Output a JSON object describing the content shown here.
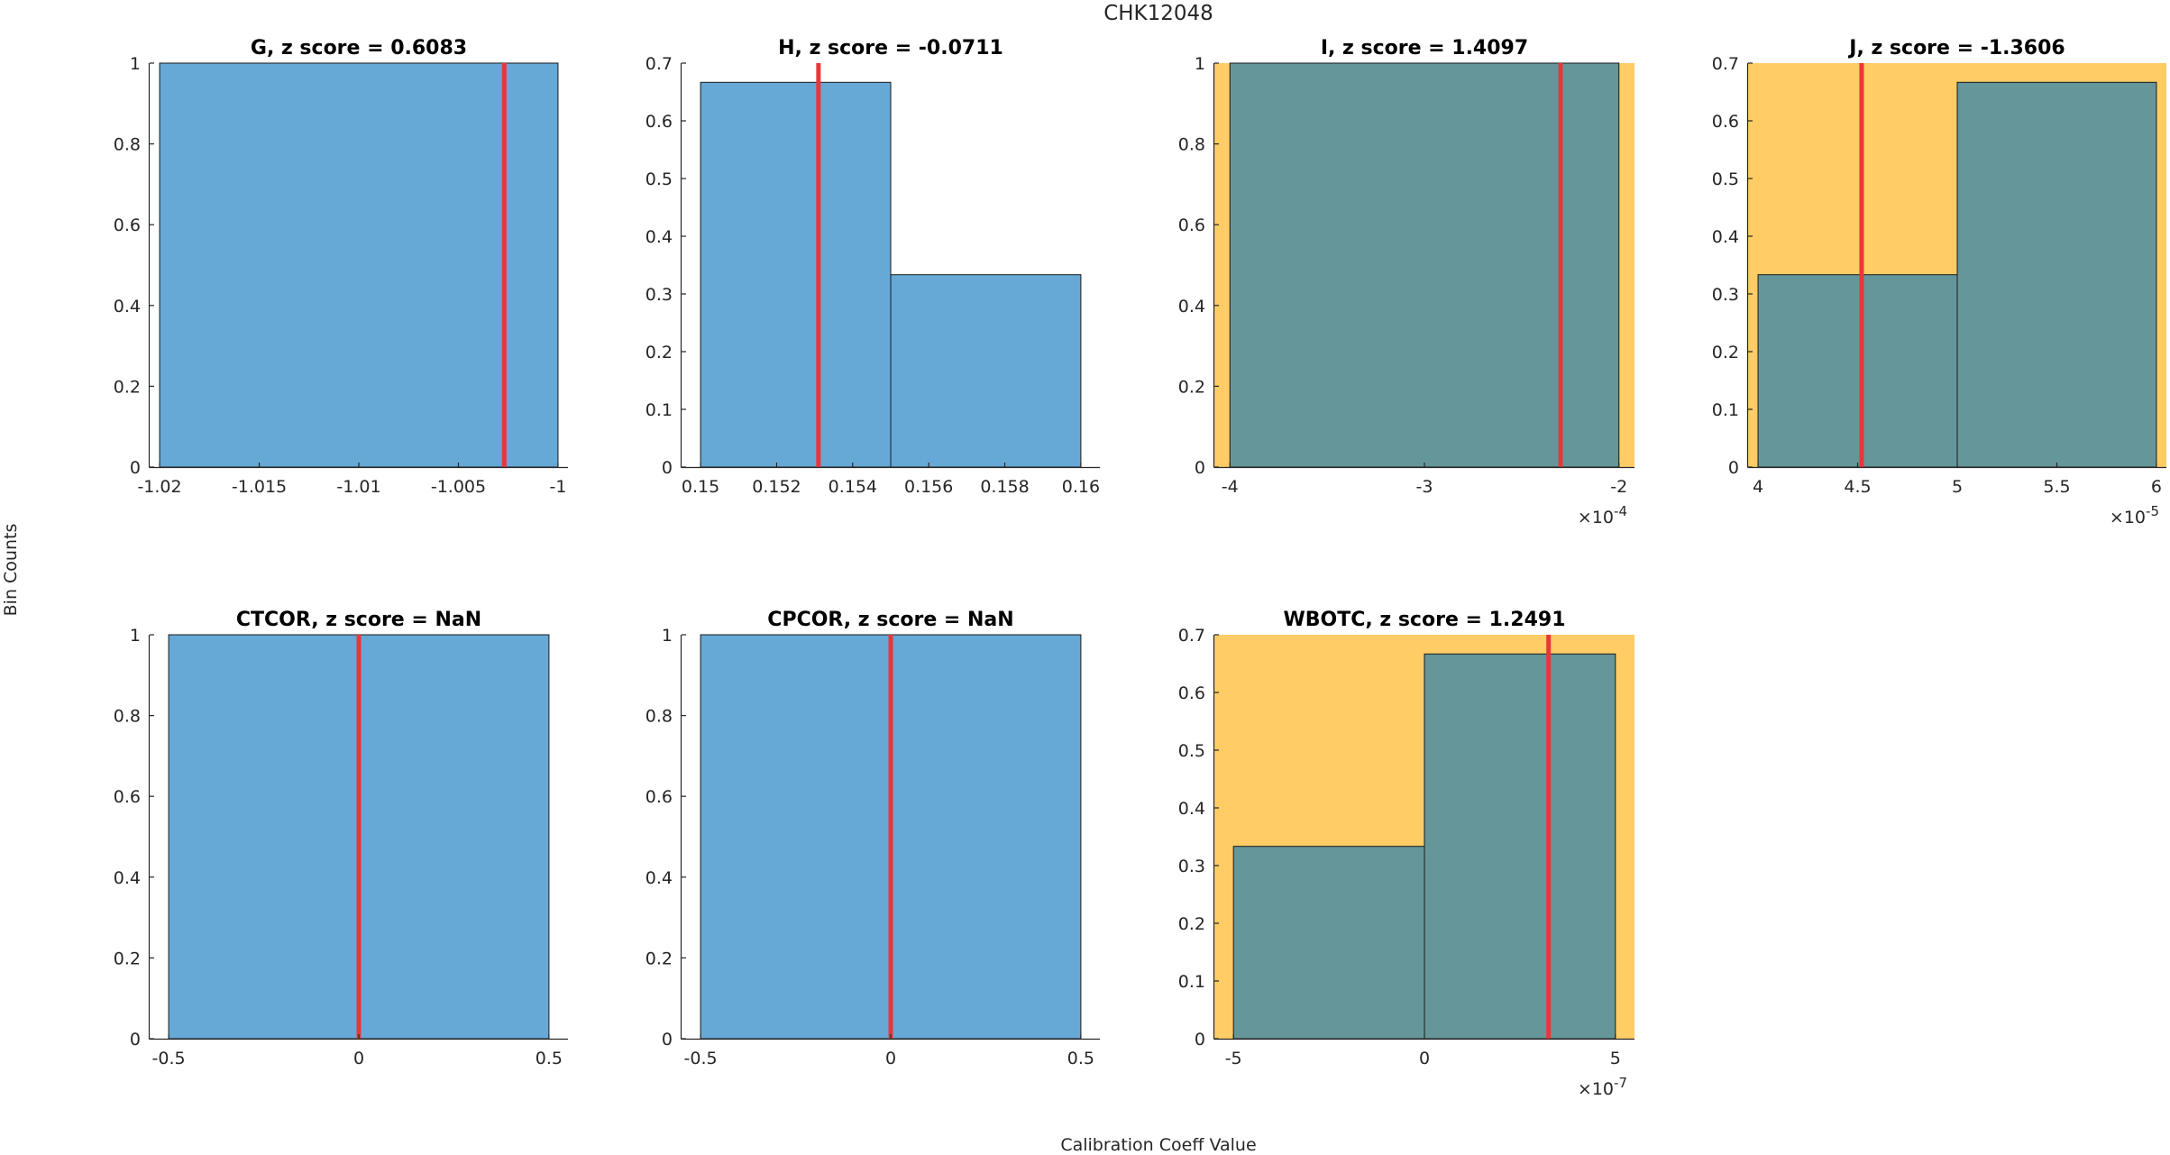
{
  "figure": {
    "suptitle": "CHK12048",
    "xlabel": "Calibration Coeff Value",
    "ylabel": "Bin Counts",
    "colors": {
      "bar_normal": "#66a9d6",
      "bar_flagged": "#65979a",
      "flag_background": "#ffcc66",
      "marker": "#e8373a",
      "axis": "#262626"
    }
  },
  "chart_data": [
    {
      "type": "bar",
      "title": "G, z score = 0.6083",
      "flagged": false,
      "xlim": [
        -1.0205,
        -0.9995
      ],
      "ylim": [
        0,
        1
      ],
      "xticks": [
        -1.02,
        -1.015,
        -1.01,
        -1.005,
        -1
      ],
      "xtick_labels": [
        "-1.02",
        "-1.015",
        "-1.01",
        "-1.005",
        "-1"
      ],
      "yticks": [
        0,
        0.2,
        0.4,
        0.6,
        0.8,
        1
      ],
      "ytick_labels": [
        "0",
        "0.2",
        "0.4",
        "0.6",
        "0.8",
        "1"
      ],
      "multiplier": "",
      "bins": [
        {
          "x0": -1.02,
          "x1": -1.0,
          "value": 1
        }
      ],
      "marker_x": -1.0027
    },
    {
      "type": "bar",
      "title": "H, z score = -0.0711",
      "flagged": false,
      "xlim": [
        0.1495,
        0.1605
      ],
      "ylim": [
        0,
        0.7
      ],
      "xticks": [
        0.15,
        0.152,
        0.154,
        0.156,
        0.158,
        0.16
      ],
      "xtick_labels": [
        "0.15",
        "0.152",
        "0.154",
        "0.156",
        "0.158",
        "0.16"
      ],
      "yticks": [
        0,
        0.1,
        0.2,
        0.3,
        0.4,
        0.5,
        0.6,
        0.7
      ],
      "ytick_labels": [
        "0",
        "0.1",
        "0.2",
        "0.3",
        "0.4",
        "0.5",
        "0.6",
        "0.7"
      ],
      "multiplier": "",
      "bins": [
        {
          "x0": 0.15,
          "x1": 0.155,
          "value": 0.6667
        },
        {
          "x0": 0.155,
          "x1": 0.16,
          "value": 0.3333
        }
      ],
      "marker_x": 0.1531
    },
    {
      "type": "bar",
      "title": "I, z score = 1.4097",
      "flagged": true,
      "xlim": [
        -4.08,
        -1.92
      ],
      "ylim": [
        0,
        1
      ],
      "xticks": [
        -4,
        -3,
        -2
      ],
      "xtick_labels": [
        "-4",
        "-3",
        "-2"
      ],
      "yticks": [
        0,
        0.2,
        0.4,
        0.6,
        0.8,
        1
      ],
      "ytick_labels": [
        "0",
        "0.2",
        "0.4",
        "0.6",
        "0.8",
        "1"
      ],
      "multiplier": "×10",
      "multiplier_exp": "-4",
      "bins": [
        {
          "x0": -4,
          "x1": -2,
          "value": 1
        }
      ],
      "marker_x": -2.3
    },
    {
      "type": "bar",
      "title": "J, z score = -1.3606",
      "flagged": true,
      "xlim": [
        3.95,
        6.05
      ],
      "ylim": [
        0,
        0.7
      ],
      "xticks": [
        4,
        4.5,
        5,
        5.5,
        6
      ],
      "xtick_labels": [
        "4",
        "4.5",
        "5",
        "5.5",
        "6"
      ],
      "yticks": [
        0,
        0.1,
        0.2,
        0.3,
        0.4,
        0.5,
        0.6,
        0.7
      ],
      "ytick_labels": [
        "0",
        "0.1",
        "0.2",
        "0.3",
        "0.4",
        "0.5",
        "0.6",
        "0.7"
      ],
      "multiplier": "×10",
      "multiplier_exp": "-5",
      "bins": [
        {
          "x0": 4,
          "x1": 5,
          "value": 0.3333
        },
        {
          "x0": 5,
          "x1": 6,
          "value": 0.6667
        }
      ],
      "marker_x": 4.52
    },
    {
      "type": "bar",
      "title": "CTCOR, z score = NaN",
      "flagged": false,
      "xlim": [
        -0.55,
        0.55
      ],
      "ylim": [
        0,
        1
      ],
      "xticks": [
        -0.5,
        0,
        0.5
      ],
      "xtick_labels": [
        "-0.5",
        "0",
        "0.5"
      ],
      "yticks": [
        0,
        0.2,
        0.4,
        0.6,
        0.8,
        1
      ],
      "ytick_labels": [
        "0",
        "0.2",
        "0.4",
        "0.6",
        "0.8",
        "1"
      ],
      "multiplier": "",
      "bins": [
        {
          "x0": -0.5,
          "x1": 0.5,
          "value": 1
        }
      ],
      "marker_x": 0
    },
    {
      "type": "bar",
      "title": "CPCOR, z score = NaN",
      "flagged": false,
      "xlim": [
        -0.55,
        0.55
      ],
      "ylim": [
        0,
        1
      ],
      "xticks": [
        -0.5,
        0,
        0.5
      ],
      "xtick_labels": [
        "-0.5",
        "0",
        "0.5"
      ],
      "yticks": [
        0,
        0.2,
        0.4,
        0.6,
        0.8,
        1
      ],
      "ytick_labels": [
        "0",
        "0.2",
        "0.4",
        "0.6",
        "0.8",
        "1"
      ],
      "multiplier": "",
      "bins": [
        {
          "x0": -0.5,
          "x1": 0.5,
          "value": 1
        }
      ],
      "marker_x": 0
    },
    {
      "type": "bar",
      "title": "WBOTC, z score = 1.2491",
      "flagged": true,
      "xlim": [
        -5.5,
        5.5
      ],
      "ylim": [
        0,
        0.7
      ],
      "xticks": [
        -5,
        0,
        5
      ],
      "xtick_labels": [
        "-5",
        "0",
        "5"
      ],
      "yticks": [
        0,
        0.1,
        0.2,
        0.3,
        0.4,
        0.5,
        0.6,
        0.7
      ],
      "ytick_labels": [
        "0",
        "0.1",
        "0.2",
        "0.3",
        "0.4",
        "0.5",
        "0.6",
        "0.7"
      ],
      "multiplier": "×10",
      "multiplier_exp": "-7",
      "bins": [
        {
          "x0": -5,
          "x1": 0,
          "value": 0.3333
        },
        {
          "x0": 0,
          "x1": 5,
          "value": 0.6667
        }
      ],
      "marker_x": 3.25
    }
  ]
}
